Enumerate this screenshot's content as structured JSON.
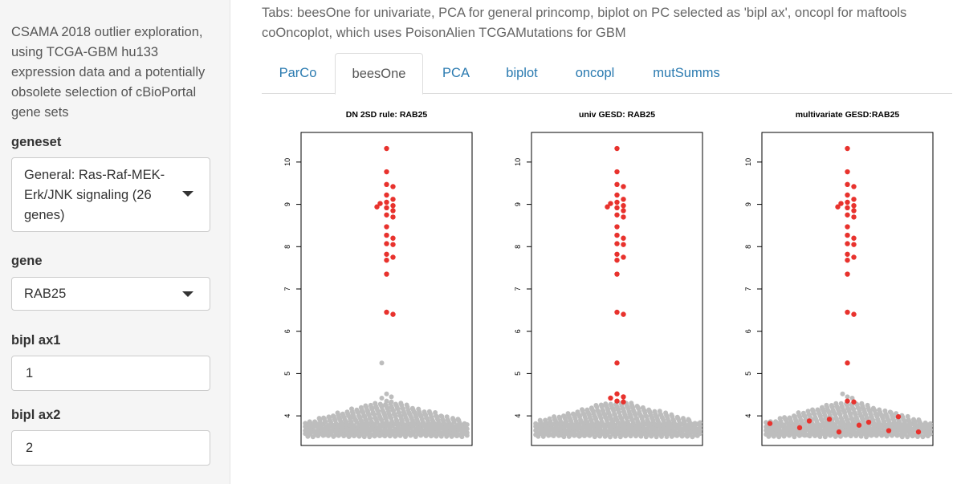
{
  "sidebar": {
    "description": "CSAMA 2018 outlier exploration, using TCGA-GBM hu133 expression data and a potentially obsolete selection of cBioPortal gene sets",
    "geneset": {
      "label": "geneset",
      "value": "General: Ras-Raf-MEK-Erk/JNK signaling (26 genes)"
    },
    "gene": {
      "label": "gene",
      "value": "RAB25"
    },
    "bipl_ax1": {
      "label": "bipl ax1",
      "value": "1"
    },
    "bipl_ax2": {
      "label": "bipl ax2",
      "value": "2"
    }
  },
  "main": {
    "description": "Tabs: beesOne for univariate, PCA for general princomp, biplot on PC selected as 'bipl ax', oncopl for maftools coOncoplot, which uses PoisonAlien TCGAMutations for GBM",
    "tabs": [
      {
        "label": "ParCo",
        "active": false
      },
      {
        "label": "beesOne",
        "active": true
      },
      {
        "label": "PCA",
        "active": false
      },
      {
        "label": "biplot",
        "active": false
      },
      {
        "label": "oncopl",
        "active": false
      },
      {
        "label": "mutSumms",
        "active": false
      }
    ]
  },
  "colors": {
    "outlier": "#e8322d",
    "inlier": "#bdbdbd",
    "link": "#2a7ab0"
  },
  "chart_data": [
    {
      "type": "scatter",
      "title": "DN 2SD rule: RAB25",
      "ylim": [
        3.3,
        10.7
      ],
      "yticks": [
        4,
        5,
        6,
        7,
        8,
        9,
        10
      ],
      "outliers": [
        10.32,
        9.77,
        9.47,
        9.42,
        9.22,
        9.12,
        9.05,
        9.02,
        8.97,
        8.94,
        8.92,
        8.85,
        8.75,
        8.7,
        8.47,
        8.27,
        8.2,
        8.07,
        8.05,
        7.82,
        7.75,
        7.68,
        7.35,
        6.45,
        6.4
      ],
      "inliers_above_band": [
        5.25,
        4.52,
        4.45,
        4.42,
        4.35,
        4.33
      ]
    },
    {
      "type": "scatter",
      "title": "univ GESD: RAB25",
      "ylim": [
        3.3,
        10.7
      ],
      "yticks": [
        4,
        5,
        6,
        7,
        8,
        9,
        10
      ],
      "outliers": [
        10.32,
        9.77,
        9.47,
        9.42,
        9.22,
        9.12,
        9.05,
        9.02,
        8.97,
        8.94,
        8.92,
        8.85,
        8.75,
        8.7,
        8.47,
        8.27,
        8.2,
        8.07,
        8.05,
        7.82,
        7.75,
        7.68,
        7.35,
        6.45,
        6.4,
        5.25,
        4.52,
        4.45,
        4.42,
        4.35,
        4.33
      ],
      "inliers_above_band": []
    },
    {
      "type": "scatter",
      "title": "multivariate GESD:RAB25",
      "ylim": [
        3.3,
        10.7
      ],
      "yticks": [
        4,
        5,
        6,
        7,
        8,
        9,
        10
      ],
      "outliers": [
        10.32,
        9.77,
        9.47,
        9.42,
        9.22,
        9.12,
        9.05,
        9.02,
        8.97,
        8.94,
        8.92,
        8.85,
        8.75,
        8.7,
        8.47,
        8.27,
        8.2,
        8.07,
        8.05,
        7.82,
        7.75,
        7.68,
        7.35,
        6.45,
        6.4,
        5.25,
        4.35,
        4.33,
        3.88,
        3.62,
        3.85,
        3.98,
        3.82,
        3.72,
        3.92,
        3.78,
        3.65,
        3.62
      ],
      "inliers_above_band": [
        4.52,
        4.45,
        4.42
      ]
    }
  ]
}
